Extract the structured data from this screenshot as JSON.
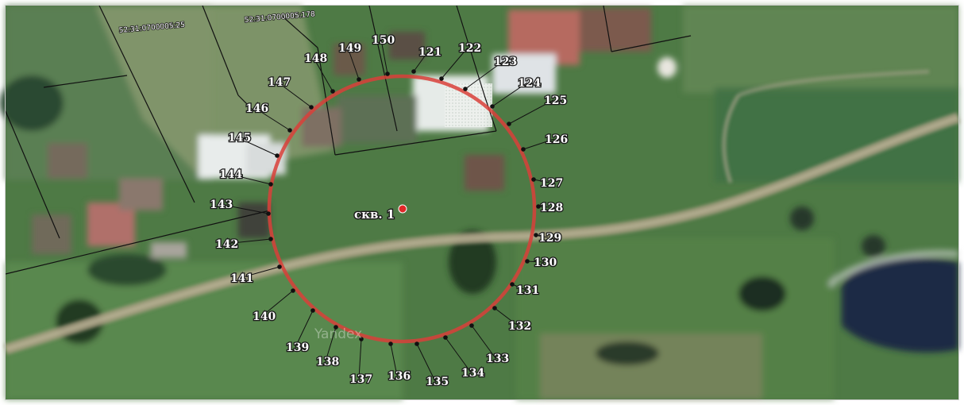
{
  "map": {
    "watermark": "Yandex",
    "well": {
      "label": "скв. 1",
      "color": "#e02828"
    },
    "zone": {
      "color": "#d9403a"
    },
    "parcels": [
      {
        "label": "52:31:0700005:25"
      },
      {
        "label": "52:31:0700005:178"
      }
    ],
    "points": [
      "121",
      "122",
      "123",
      "124",
      "125",
      "126",
      "127",
      "128",
      "129",
      "130",
      "131",
      "132",
      "133",
      "134",
      "135",
      "136",
      "137",
      "138",
      "139",
      "140",
      "141",
      "142",
      "143",
      "144",
      "145",
      "146",
      "147",
      "148",
      "149",
      "150"
    ],
    "colors": {
      "border": "#111111",
      "grass": "#4e7a45",
      "road": "#a99e82",
      "water": "#1b2a44",
      "roof_red": "#b66a60",
      "roof_light": "#dfe3e6"
    }
  }
}
